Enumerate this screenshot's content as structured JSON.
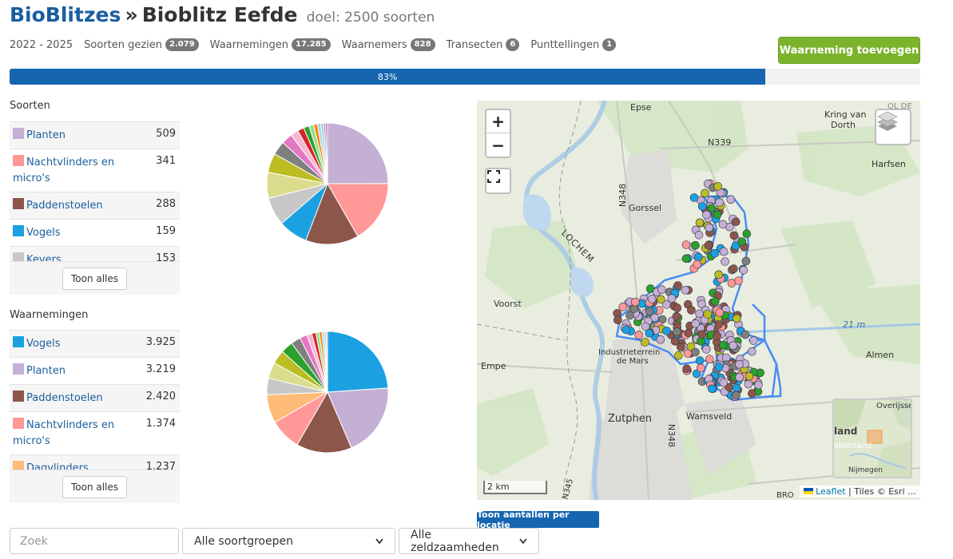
{
  "header": {
    "breadcrumb": "BioBlitzes",
    "separator": "»",
    "title": "Bioblitz Eefde",
    "goal": "doel: 2500 soorten"
  },
  "stats": {
    "period": "2022 - 2025",
    "items": [
      {
        "label": "Soorten gezien",
        "count": "2.079"
      },
      {
        "label": "Waarnemingen",
        "count": "17.285"
      },
      {
        "label": "Waarnemers",
        "count": "828"
      },
      {
        "label": "Transecten",
        "count": "6"
      },
      {
        "label": "Punttellingen",
        "count": "1"
      }
    ]
  },
  "add_button": "Waarneming toevoegen",
  "progress": {
    "label": "83%",
    "value": 0.83
  },
  "species": {
    "title": "Soorten",
    "rows": [
      {
        "label": "Planten",
        "count": "509",
        "color": "#c5b0d5"
      },
      {
        "label": "Nachtvlinders en micro's",
        "count": "341",
        "color": "#ff9896"
      },
      {
        "label": "Paddenstoelen",
        "count": "288",
        "color": "#8c564b"
      },
      {
        "label": "Vogels",
        "count": "159",
        "color": "#1ba1e2"
      },
      {
        "label": "Kevers",
        "count": "153",
        "color": "#c7c7c7"
      }
    ],
    "more": "Toon alles"
  },
  "observations": {
    "title": "Waarnemingen",
    "rows": [
      {
        "label": "Vogels",
        "count": "3.925",
        "color": "#1ba1e2"
      },
      {
        "label": "Planten",
        "count": "3.219",
        "color": "#c5b0d5"
      },
      {
        "label": "Paddenstoelen",
        "count": "2.420",
        "color": "#8c564b"
      },
      {
        "label": "Nachtvlinders en micro's",
        "count": "1.374",
        "color": "#ff9896"
      },
      {
        "label": "Dagvlinders",
        "count": "1.237",
        "color": "#ffbb78"
      }
    ],
    "more": "Toon alles"
  },
  "pie_species": [
    {
      "value": 509,
      "color": "#c5b0d5"
    },
    {
      "value": 341,
      "color": "#ff9896"
    },
    {
      "value": 288,
      "color": "#8c564b"
    },
    {
      "value": 159,
      "color": "#1ba1e2"
    },
    {
      "value": 153,
      "color": "#c7c7c7"
    },
    {
      "value": 140,
      "color": "#dbdb8d"
    },
    {
      "value": 105,
      "color": "#bcbd22"
    },
    {
      "value": 75,
      "color": "#7f7f7f"
    },
    {
      "value": 60,
      "color": "#e377c2"
    },
    {
      "value": 42,
      "color": "#f7b6d2"
    },
    {
      "value": 35,
      "color": "#d62728"
    },
    {
      "value": 30,
      "color": "#2ca02c"
    },
    {
      "value": 26,
      "color": "#98df8a"
    },
    {
      "value": 20,
      "color": "#ff7f0e"
    },
    {
      "value": 18,
      "color": "#9edae5"
    },
    {
      "value": 15,
      "color": "#aec7e8"
    },
    {
      "value": 12,
      "color": "#c49c94"
    },
    {
      "value": 10,
      "color": "#9467bd"
    }
  ],
  "pie_observations": [
    {
      "value": 3925,
      "color": "#1ba1e2"
    },
    {
      "value": 3219,
      "color": "#c5b0d5"
    },
    {
      "value": 2420,
      "color": "#8c564b"
    },
    {
      "value": 1374,
      "color": "#ff9896"
    },
    {
      "value": 1237,
      "color": "#ffbb78"
    },
    {
      "value": 730,
      "color": "#c7c7c7"
    },
    {
      "value": 700,
      "color": "#dbdb8d"
    },
    {
      "value": 600,
      "color": "#bcbd22"
    },
    {
      "value": 540,
      "color": "#2ca02c"
    },
    {
      "value": 420,
      "color": "#7f7f7f"
    },
    {
      "value": 320,
      "color": "#e377c2"
    },
    {
      "value": 220,
      "color": "#f7b6d2"
    },
    {
      "value": 180,
      "color": "#d62728"
    },
    {
      "value": 150,
      "color": "#98df8a"
    },
    {
      "value": 120,
      "color": "#ff7f0e"
    },
    {
      "value": 100,
      "color": "#9edae5"
    },
    {
      "value": 80,
      "color": "#aec7e8"
    },
    {
      "value": 60,
      "color": "#c49c94"
    }
  ],
  "map": {
    "labels": {
      "epse": "Epse",
      "kring": "Kring van",
      "dorth": "Dorth",
      "n339": "N339",
      "harfsen": "Harfsen",
      "gorssel": "Gorssel",
      "n348a": "N348",
      "lochem": "LOCHEM",
      "voorst": "Voorst",
      "m21": "21 m",
      "almen": "Almen",
      "industrie1": "Industrieterrein",
      "industrie2": "de Mars",
      "empe": "Empe",
      "zutphen": "Zutphen",
      "warnsveld": "Warnsveld",
      "n348b": "N348",
      "n345": "N345",
      "bro": "BRO",
      "ol": "OL DE"
    },
    "minimap_labels": {
      "overijssel": "Overijsse",
      "land": "land",
      "gelderland": "elderland",
      "nijmegen": "Nijmegen"
    },
    "scale": "2 km",
    "attribution_leaflet": "Leaflet",
    "attribution_rest": "| Tiles © Esri …",
    "zoom_in": "+",
    "zoom_out": "−"
  },
  "location_button": "Toon aantallen per locatie",
  "filters": {
    "search_placeholder": "Zoek",
    "group_select": "Alle soortgroepen",
    "rarity_select": "Alle zeldzaamheden"
  }
}
